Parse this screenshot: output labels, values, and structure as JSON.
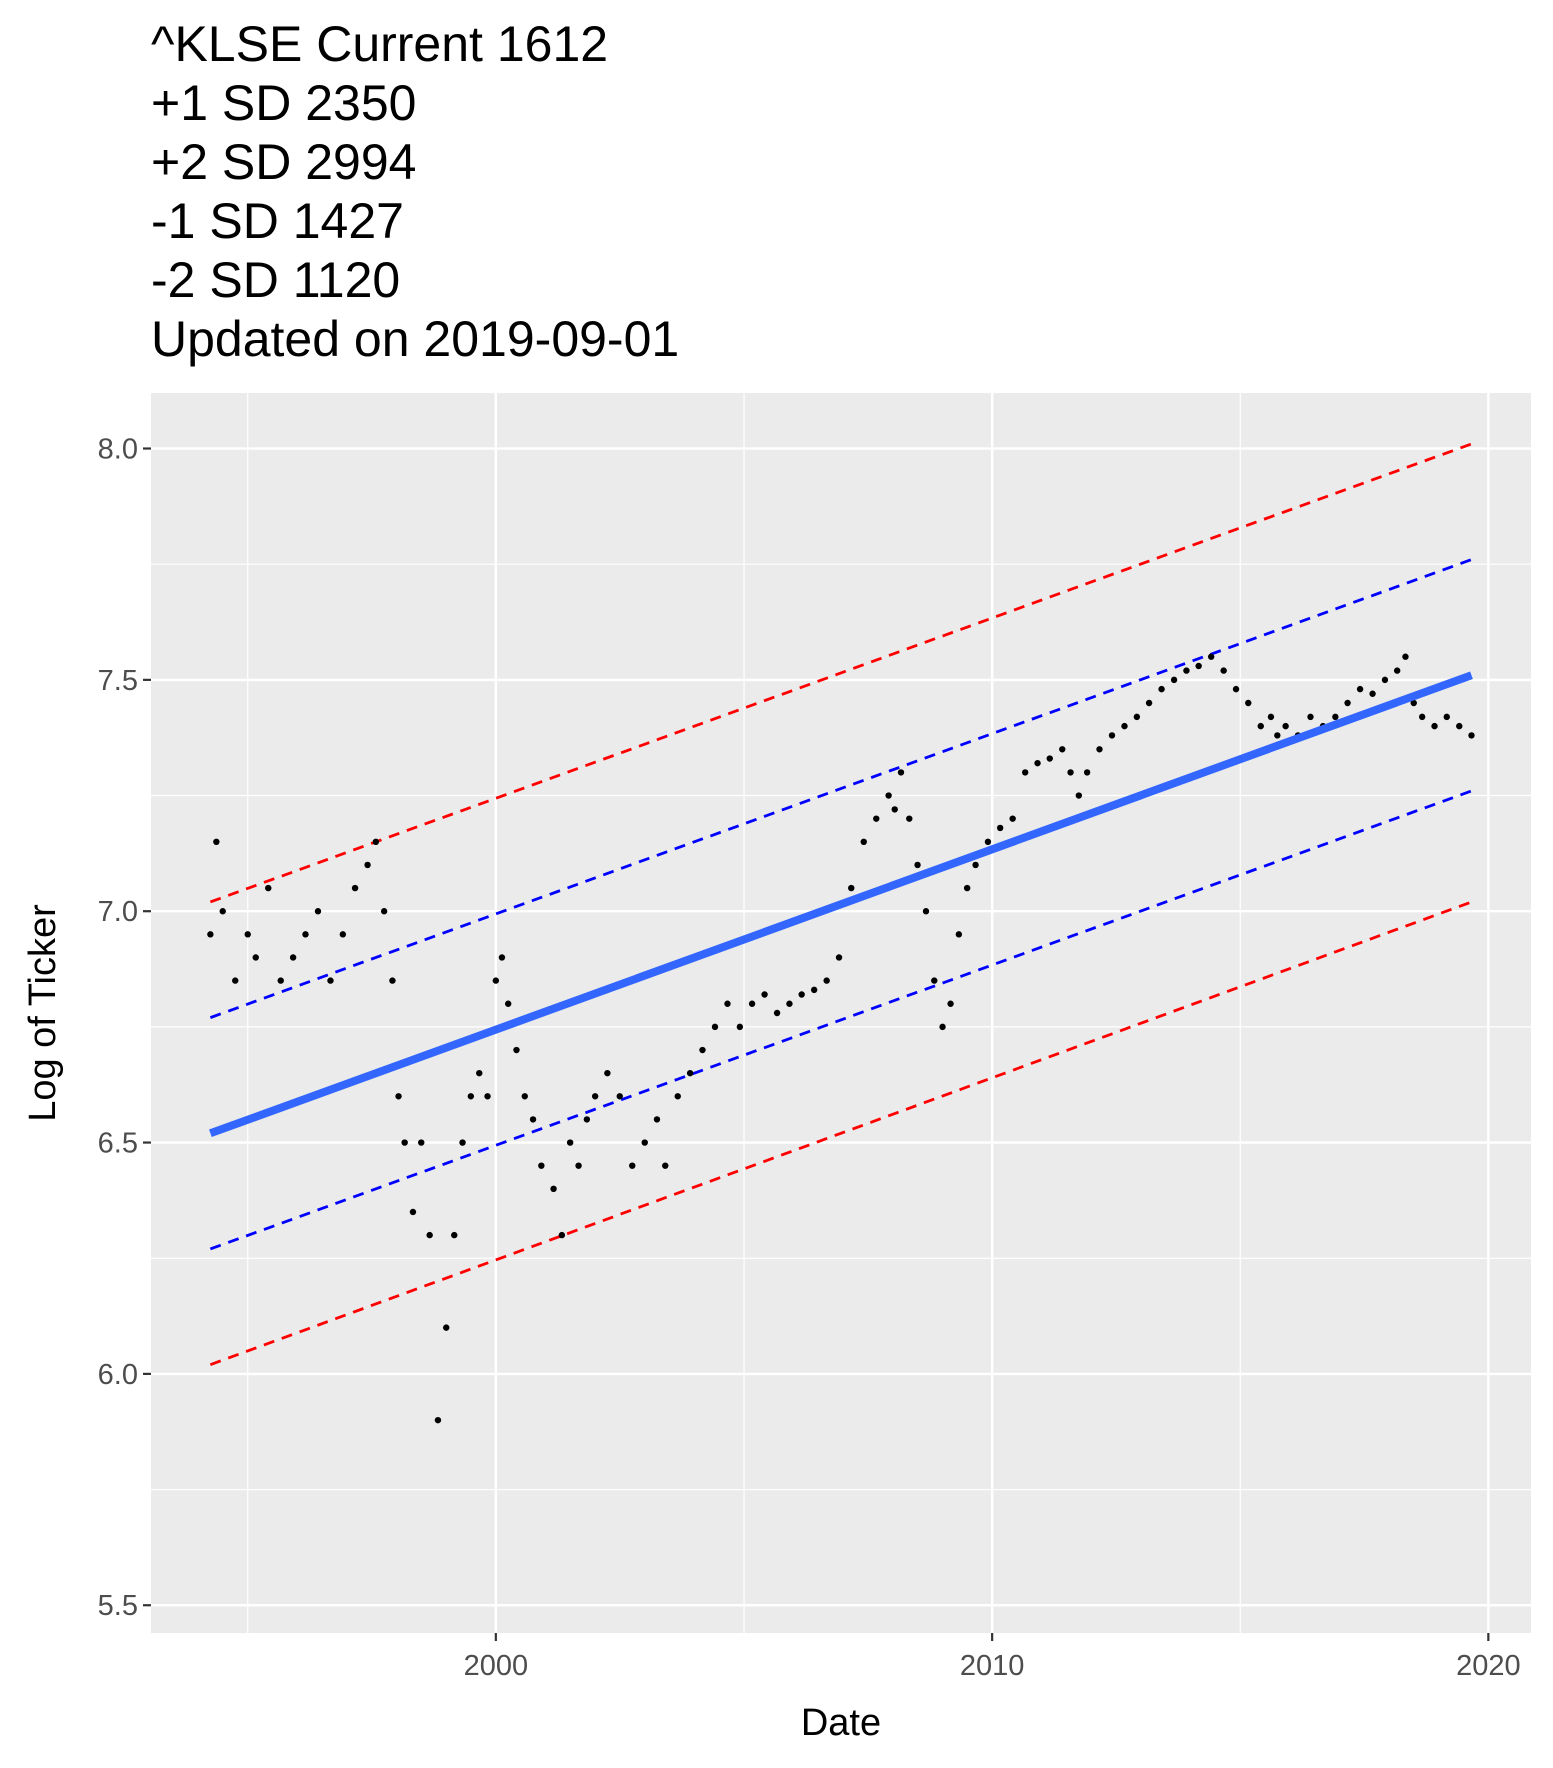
{
  "chart_data": {
    "type": "scatter",
    "title_lines": [
      "^KLSE Current 1612",
      "+1 SD 2350",
      "+2 SD 2994",
      "-1 SD 1427",
      "-2 SD 1120",
      "Updated on 2019-09-01"
    ],
    "xlabel": "Date",
    "ylabel": "Log of Ticker",
    "x_ticks": [
      "2000",
      "2010",
      "2020"
    ],
    "x_tick_years": [
      2000,
      2010,
      2020
    ],
    "y_ticks": [
      "5.5",
      "6.0",
      "6.5",
      "7.0",
      "7.5",
      "8.0"
    ],
    "y_tick_values": [
      5.5,
      6.0,
      6.5,
      7.0,
      7.5,
      8.0
    ],
    "xlim": [
      "1993-01-19",
      "2020-11-10"
    ],
    "ylim": [
      5.44,
      8.12
    ],
    "grid": true,
    "background": "#ebebeb",
    "point_color": "#000000",
    "series": [
      {
        "type": "points",
        "x": [
          "1994-04-01",
          "1994-05-15",
          "1994-07-01",
          "1994-10-01",
          "1995-01-01",
          "1995-03-01",
          "1995-06-01",
          "1995-09-01",
          "1995-12-01",
          "1996-03-01",
          "1996-06-01",
          "1996-09-01",
          "1996-12-01",
          "1997-03-01",
          "1997-06-01",
          "1997-08-01",
          "1997-10-01",
          "1997-12-01",
          "1998-01-15",
          "1998-03-01",
          "1998-05-01",
          "1998-07-01",
          "1998-09-01",
          "1998-11-01",
          "1999-01-01",
          "1999-03-01",
          "1999-05-01",
          "1999-07-01",
          "1999-09-01",
          "1999-11-01",
          "2000-01-01",
          "2000-02-15",
          "2000-04-01",
          "2000-06-01",
          "2000-08-01",
          "2000-10-01",
          "2000-12-01",
          "2001-03-01",
          "2001-05-01",
          "2001-07-01",
          "2001-09-01",
          "2001-11-01",
          "2002-01-01",
          "2002-04-01",
          "2002-07-01",
          "2002-10-01",
          "2003-01-01",
          "2003-04-01",
          "2003-06-01",
          "2003-09-01",
          "2003-12-01",
          "2004-03-01",
          "2004-06-01",
          "2004-09-01",
          "2004-12-01",
          "2005-03-01",
          "2005-06-01",
          "2005-09-01",
          "2005-12-01",
          "2006-03-01",
          "2006-06-01",
          "2006-09-01",
          "2006-12-01",
          "2007-03-01",
          "2007-06-01",
          "2007-09-01",
          "2007-12-01",
          "2008-01-15",
          "2008-03-01",
          "2008-05-01",
          "2008-07-01",
          "2008-09-01",
          "2008-11-01",
          "2009-01-01",
          "2009-03-01",
          "2009-05-01",
          "2009-07-01",
          "2009-09-01",
          "2009-12-01",
          "2010-03-01",
          "2010-06-01",
          "2010-09-01",
          "2010-12-01",
          "2011-03-01",
          "2011-06-01",
          "2011-08-01",
          "2011-10-01",
          "2011-12-01",
          "2012-03-01",
          "2012-06-01",
          "2012-09-01",
          "2012-12-01",
          "2013-03-01",
          "2013-06-01",
          "2013-09-01",
          "2013-12-01",
          "2014-03-01",
          "2014-06-01",
          "2014-09-01",
          "2014-12-01",
          "2015-03-01",
          "2015-06-01",
          "2015-08-15",
          "2015-10-01",
          "2015-12-01",
          "2016-03-01",
          "2016-06-01",
          "2016-09-01",
          "2016-12-01",
          "2017-03-01",
          "2017-06-01",
          "2017-09-01",
          "2017-12-01",
          "2018-03-01",
          "2018-05-01",
          "2018-07-01",
          "2018-09-01",
          "2018-12-01",
          "2019-03-01",
          "2019-06-01",
          "2019-08-30"
        ],
        "y": [
          6.95,
          7.15,
          7.0,
          6.85,
          6.95,
          6.9,
          7.05,
          6.85,
          6.9,
          6.95,
          7.0,
          6.85,
          6.95,
          7.05,
          7.1,
          7.15,
          7.0,
          6.85,
          6.6,
          6.5,
          6.35,
          6.5,
          6.3,
          5.9,
          6.1,
          6.3,
          6.5,
          6.6,
          6.65,
          6.6,
          6.85,
          6.9,
          6.8,
          6.7,
          6.6,
          6.55,
          6.45,
          6.4,
          6.3,
          6.5,
          6.45,
          6.55,
          6.6,
          6.65,
          6.6,
          6.45,
          6.5,
          6.55,
          6.45,
          6.6,
          6.65,
          6.7,
          6.75,
          6.8,
          6.75,
          6.8,
          6.82,
          6.78,
          6.8,
          6.82,
          6.83,
          6.85,
          6.9,
          7.05,
          7.15,
          7.2,
          7.25,
          7.22,
          7.3,
          7.2,
          7.1,
          7.0,
          6.85,
          6.75,
          6.8,
          6.95,
          7.05,
          7.1,
          7.15,
          7.18,
          7.2,
          7.3,
          7.32,
          7.33,
          7.35,
          7.3,
          7.25,
          7.3,
          7.35,
          7.38,
          7.4,
          7.42,
          7.45,
          7.48,
          7.5,
          7.52,
          7.53,
          7.55,
          7.52,
          7.48,
          7.45,
          7.4,
          7.42,
          7.38,
          7.4,
          7.38,
          7.42,
          7.4,
          7.42,
          7.45,
          7.48,
          7.47,
          7.5,
          7.52,
          7.55,
          7.45,
          7.42,
          7.4,
          7.42,
          7.4,
          7.38
        ]
      }
    ],
    "fit_line": {
      "x": [
        "1994-04-01",
        "2019-08-30"
      ],
      "y": [
        6.52,
        7.51
      ],
      "color": "#3366ff"
    },
    "sd1_lines": [
      {
        "x": [
          "1994-04-01",
          "2019-08-30"
        ],
        "y": [
          6.77,
          7.76
        ],
        "color": "#0000ff"
      },
      {
        "x": [
          "1994-04-01",
          "2019-08-30"
        ],
        "y": [
          6.27,
          7.26
        ],
        "color": "#0000ff"
      }
    ],
    "sd2_lines": [
      {
        "x": [
          "1994-04-01",
          "2019-08-30"
        ],
        "y": [
          7.02,
          8.01
        ],
        "color": "#ff0000"
      },
      {
        "x": [
          "1994-04-01",
          "2019-08-30"
        ],
        "y": [
          6.02,
          7.02
        ],
        "color": "#ff0000"
      }
    ]
  }
}
